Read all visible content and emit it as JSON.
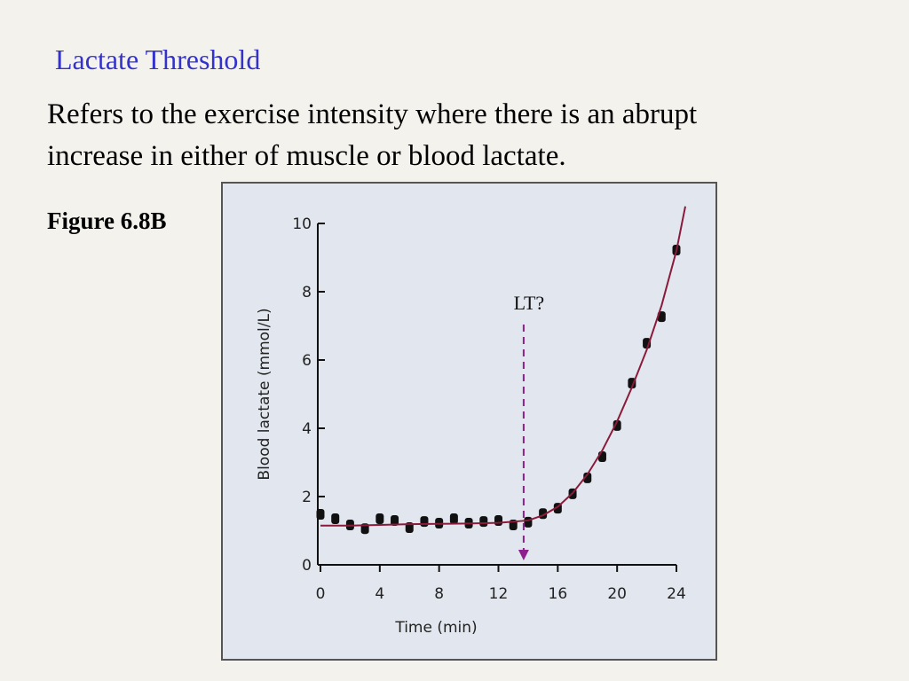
{
  "title": "Lactate Threshold",
  "body": [
    "Refers to the exercise intensity where there is an abrupt",
    "increase in either of muscle or blood lactate."
  ],
  "figure_label": "Figure 6.8B",
  "chart_data": {
    "type": "scatter",
    "x_label": "Time (min)",
    "y_label": "Blood lactate (mmol/L)",
    "xlim": [
      0,
      24
    ],
    "ylim": [
      0,
      10
    ],
    "xticks": [
      0,
      4,
      8,
      12,
      16,
      20,
      24
    ],
    "yticks": [
      0,
      2,
      4,
      6,
      8,
      10
    ],
    "series": [
      {
        "mode": "markers",
        "color": "#111111",
        "x": [
          0,
          1,
          2,
          3,
          4,
          5,
          6,
          7,
          8,
          9,
          10,
          11,
          12,
          13,
          14,
          15,
          16,
          17,
          18,
          19,
          20,
          21,
          22,
          23,
          24
        ],
        "values": [
          1.48,
          1.35,
          1.17,
          1.06,
          1.35,
          1.3,
          1.09,
          1.27,
          1.22,
          1.35,
          1.22,
          1.27,
          1.3,
          1.17,
          1.25,
          1.5,
          1.66,
          2.08,
          2.55,
          3.17,
          4.08,
          5.32,
          6.49,
          7.27,
          9.22
        ]
      },
      {
        "mode": "line",
        "color": "#8b1a3a",
        "x": [
          0,
          2,
          4,
          6,
          8,
          10,
          12,
          14,
          15,
          16,
          17,
          18,
          19,
          20,
          21,
          22,
          23,
          24,
          24.6
        ],
        "values": [
          1.15,
          1.15,
          1.17,
          1.19,
          1.2,
          1.21,
          1.23,
          1.3,
          1.45,
          1.7,
          2.1,
          2.65,
          3.35,
          4.2,
          5.2,
          6.3,
          7.6,
          9.2,
          10.5
        ]
      }
    ],
    "annotations": [
      {
        "text": "LT?",
        "x": 13.7,
        "color": "#8e1f8e"
      }
    ]
  }
}
